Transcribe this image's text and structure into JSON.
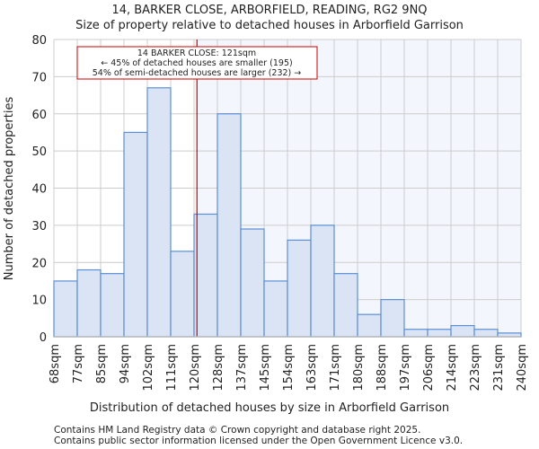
{
  "chart_data": {
    "type": "bar",
    "title": "14, BARKER CLOSE, ARBORFIELD, READING, RG2 9NQ",
    "subtitle": "Size of property relative to detached houses in Arborfield Garrison",
    "xlabel": "Distribution of detached houses by size in Arborfield Garrison",
    "ylabel": "Number of detached properties",
    "bin_edges": [
      "68sqm",
      "77sqm",
      "85sqm",
      "94sqm",
      "102sqm",
      "111sqm",
      "120sqm",
      "128sqm",
      "137sqm",
      "145sqm",
      "154sqm",
      "163sqm",
      "171sqm",
      "180sqm",
      "188sqm",
      "197sqm",
      "206sqm",
      "214sqm",
      "223sqm",
      "231sqm",
      "240sqm"
    ],
    "values": [
      15,
      18,
      17,
      55,
      67,
      23,
      33,
      60,
      29,
      15,
      26,
      30,
      17,
      6,
      10,
      2,
      2,
      3,
      2,
      1
    ],
    "ylim": [
      0,
      80
    ],
    "yticks": [
      0,
      10,
      20,
      30,
      40,
      50,
      60,
      70,
      80
    ],
    "grid": true,
    "marker": {
      "value_sqm": 121,
      "bin_position": 6.125,
      "color": "#cc0000"
    },
    "annotation": {
      "line1": "14 BARKER CLOSE: 121sqm",
      "line2": "← 45% of detached houses are smaller (195)",
      "line3": "54% of semi-detached houses are larger (232) →"
    },
    "colors": {
      "bar_fill": "#dae4f4",
      "bar_stroke": "#5b8fd6",
      "highlight_bg": "#f3f6fd",
      "grid": "#cccccc"
    }
  },
  "footer": {
    "line1": "Contains HM Land Registry data © Crown copyright and database right 2025.",
    "line2": "Contains public sector information licensed under the Open Government Licence v3.0."
  }
}
